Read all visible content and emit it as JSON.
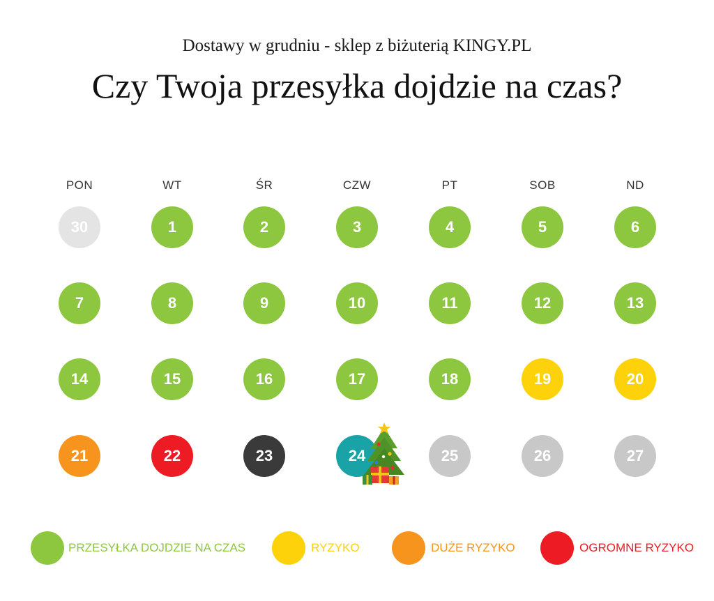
{
  "subtitle": "Dostawy w grudniu - sklep z biżuterią KINGY.PL",
  "title": "Czy Twoja przesyłka dojdzie na czas?",
  "weekdays": [
    "PON",
    "WT",
    "ŚR",
    "CZW",
    "PT",
    "SOB",
    "ND"
  ],
  "colors": {
    "green": "#8dc63f",
    "yellow": "#fdd20a",
    "orange": "#f7941d",
    "red": "#ed1c24",
    "black": "#3a3a3a",
    "teal": "#1aa3a6",
    "light_gray": "#e4e4e4",
    "gray": "#c8c8c8"
  },
  "days": [
    {
      "label": "30",
      "status": "light_gray"
    },
    {
      "label": "1",
      "status": "green"
    },
    {
      "label": "2",
      "status": "green"
    },
    {
      "label": "3",
      "status": "green"
    },
    {
      "label": "4",
      "status": "green"
    },
    {
      "label": "5",
      "status": "green"
    },
    {
      "label": "6",
      "status": "green"
    },
    {
      "label": "7",
      "status": "green"
    },
    {
      "label": "8",
      "status": "green"
    },
    {
      "label": "9",
      "status": "green"
    },
    {
      "label": "10",
      "status": "green"
    },
    {
      "label": "11",
      "status": "green"
    },
    {
      "label": "12",
      "status": "green"
    },
    {
      "label": "13",
      "status": "green"
    },
    {
      "label": "14",
      "status": "green"
    },
    {
      "label": "15",
      "status": "green"
    },
    {
      "label": "16",
      "status": "green"
    },
    {
      "label": "17",
      "status": "green"
    },
    {
      "label": "18",
      "status": "green"
    },
    {
      "label": "19",
      "status": "yellow"
    },
    {
      "label": "20",
      "status": "yellow"
    },
    {
      "label": "21",
      "status": "orange"
    },
    {
      "label": "22",
      "status": "red"
    },
    {
      "label": "23",
      "status": "black"
    },
    {
      "label": "24",
      "status": "teal",
      "icon": "christmas-tree-icon"
    },
    {
      "label": "25",
      "status": "gray"
    },
    {
      "label": "26",
      "status": "gray"
    },
    {
      "label": "27",
      "status": "gray"
    }
  ],
  "legend": [
    {
      "label": "PRZESYŁKA DOJDZIE NA CZAS",
      "color": "#8dc63f"
    },
    {
      "label": "RYZYKO",
      "color": "#fdd20a"
    },
    {
      "label": "DUŻE RYZYKO",
      "color": "#f7941d"
    },
    {
      "label": "OGROMNE RYZYKO",
      "color": "#ed1c24"
    }
  ]
}
